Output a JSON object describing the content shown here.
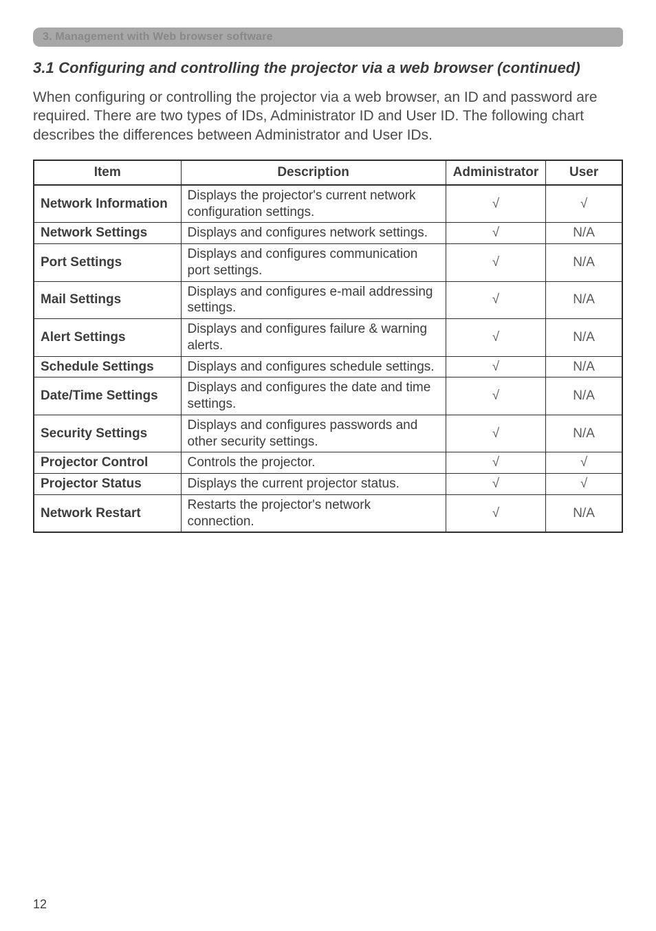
{
  "colors": {
    "page_bg": "#ffffff",
    "banner_bg": "#a8a8a8",
    "banner_text": "#888888",
    "body_text": "#3d3d3d",
    "intro_text": "#4a4a4a",
    "table_border": "#2d2d2d",
    "mark_text": "#5a5a5a"
  },
  "typography": {
    "banner_fontsize": 16,
    "subheading_fontsize": 22,
    "intro_fontsize": 21,
    "table_fontsize": 19,
    "pagenum_fontsize": 18
  },
  "banner": "3. Management with Web browser software",
  "subheading": "3.1 Configuring and controlling the projector via a web browser (continued)",
  "intro": "When configuring or controlling the projector via a web browser, an ID and password are required. There are two types of IDs, Administrator ID and User ID. The following chart describes the differences between Administrator and User IDs.",
  "table": {
    "type": "table",
    "column_widths_pct": [
      25,
      45,
      17,
      13
    ],
    "columns": [
      "Item",
      "Description",
      "Administrator",
      "User"
    ],
    "rows": [
      {
        "item": "Network Information",
        "desc": "Displays the projector's current network configuration settings.",
        "admin": "√",
        "user": "√"
      },
      {
        "item": "Network Settings",
        "desc": "Displays and configures network settings.",
        "admin": "√",
        "user": "N/A"
      },
      {
        "item": "Port Settings",
        "desc": "Displays and configures communication port settings.",
        "admin": "√",
        "user": "N/A"
      },
      {
        "item": "Mail Settings",
        "desc": "Displays and configures e-mail addressing settings.",
        "admin": "√",
        "user": "N/A"
      },
      {
        "item": "Alert Settings",
        "desc": "Displays and configures failure & warning alerts.",
        "admin": "√",
        "user": "N/A"
      },
      {
        "item": "Schedule Settings",
        "desc": "Displays and configures schedule settings.",
        "admin": "√",
        "user": "N/A"
      },
      {
        "item": "Date/Time Settings",
        "desc": "Displays and configures the date and time settings.",
        "admin": "√",
        "user": "N/A"
      },
      {
        "item": "Security Settings",
        "desc": "Displays and configures passwords and other security settings.",
        "admin": "√",
        "user": "N/A"
      },
      {
        "item": "Projector Control",
        "desc": "Controls the projector.",
        "admin": "√",
        "user": "√"
      },
      {
        "item": "Projector Status",
        "desc": "Displays the current projector status.",
        "admin": "√",
        "user": "√"
      },
      {
        "item": "Network Restart",
        "desc": "Restarts the projector's network connection.",
        "admin": "√",
        "user": "N/A"
      }
    ]
  },
  "page_number": "12"
}
